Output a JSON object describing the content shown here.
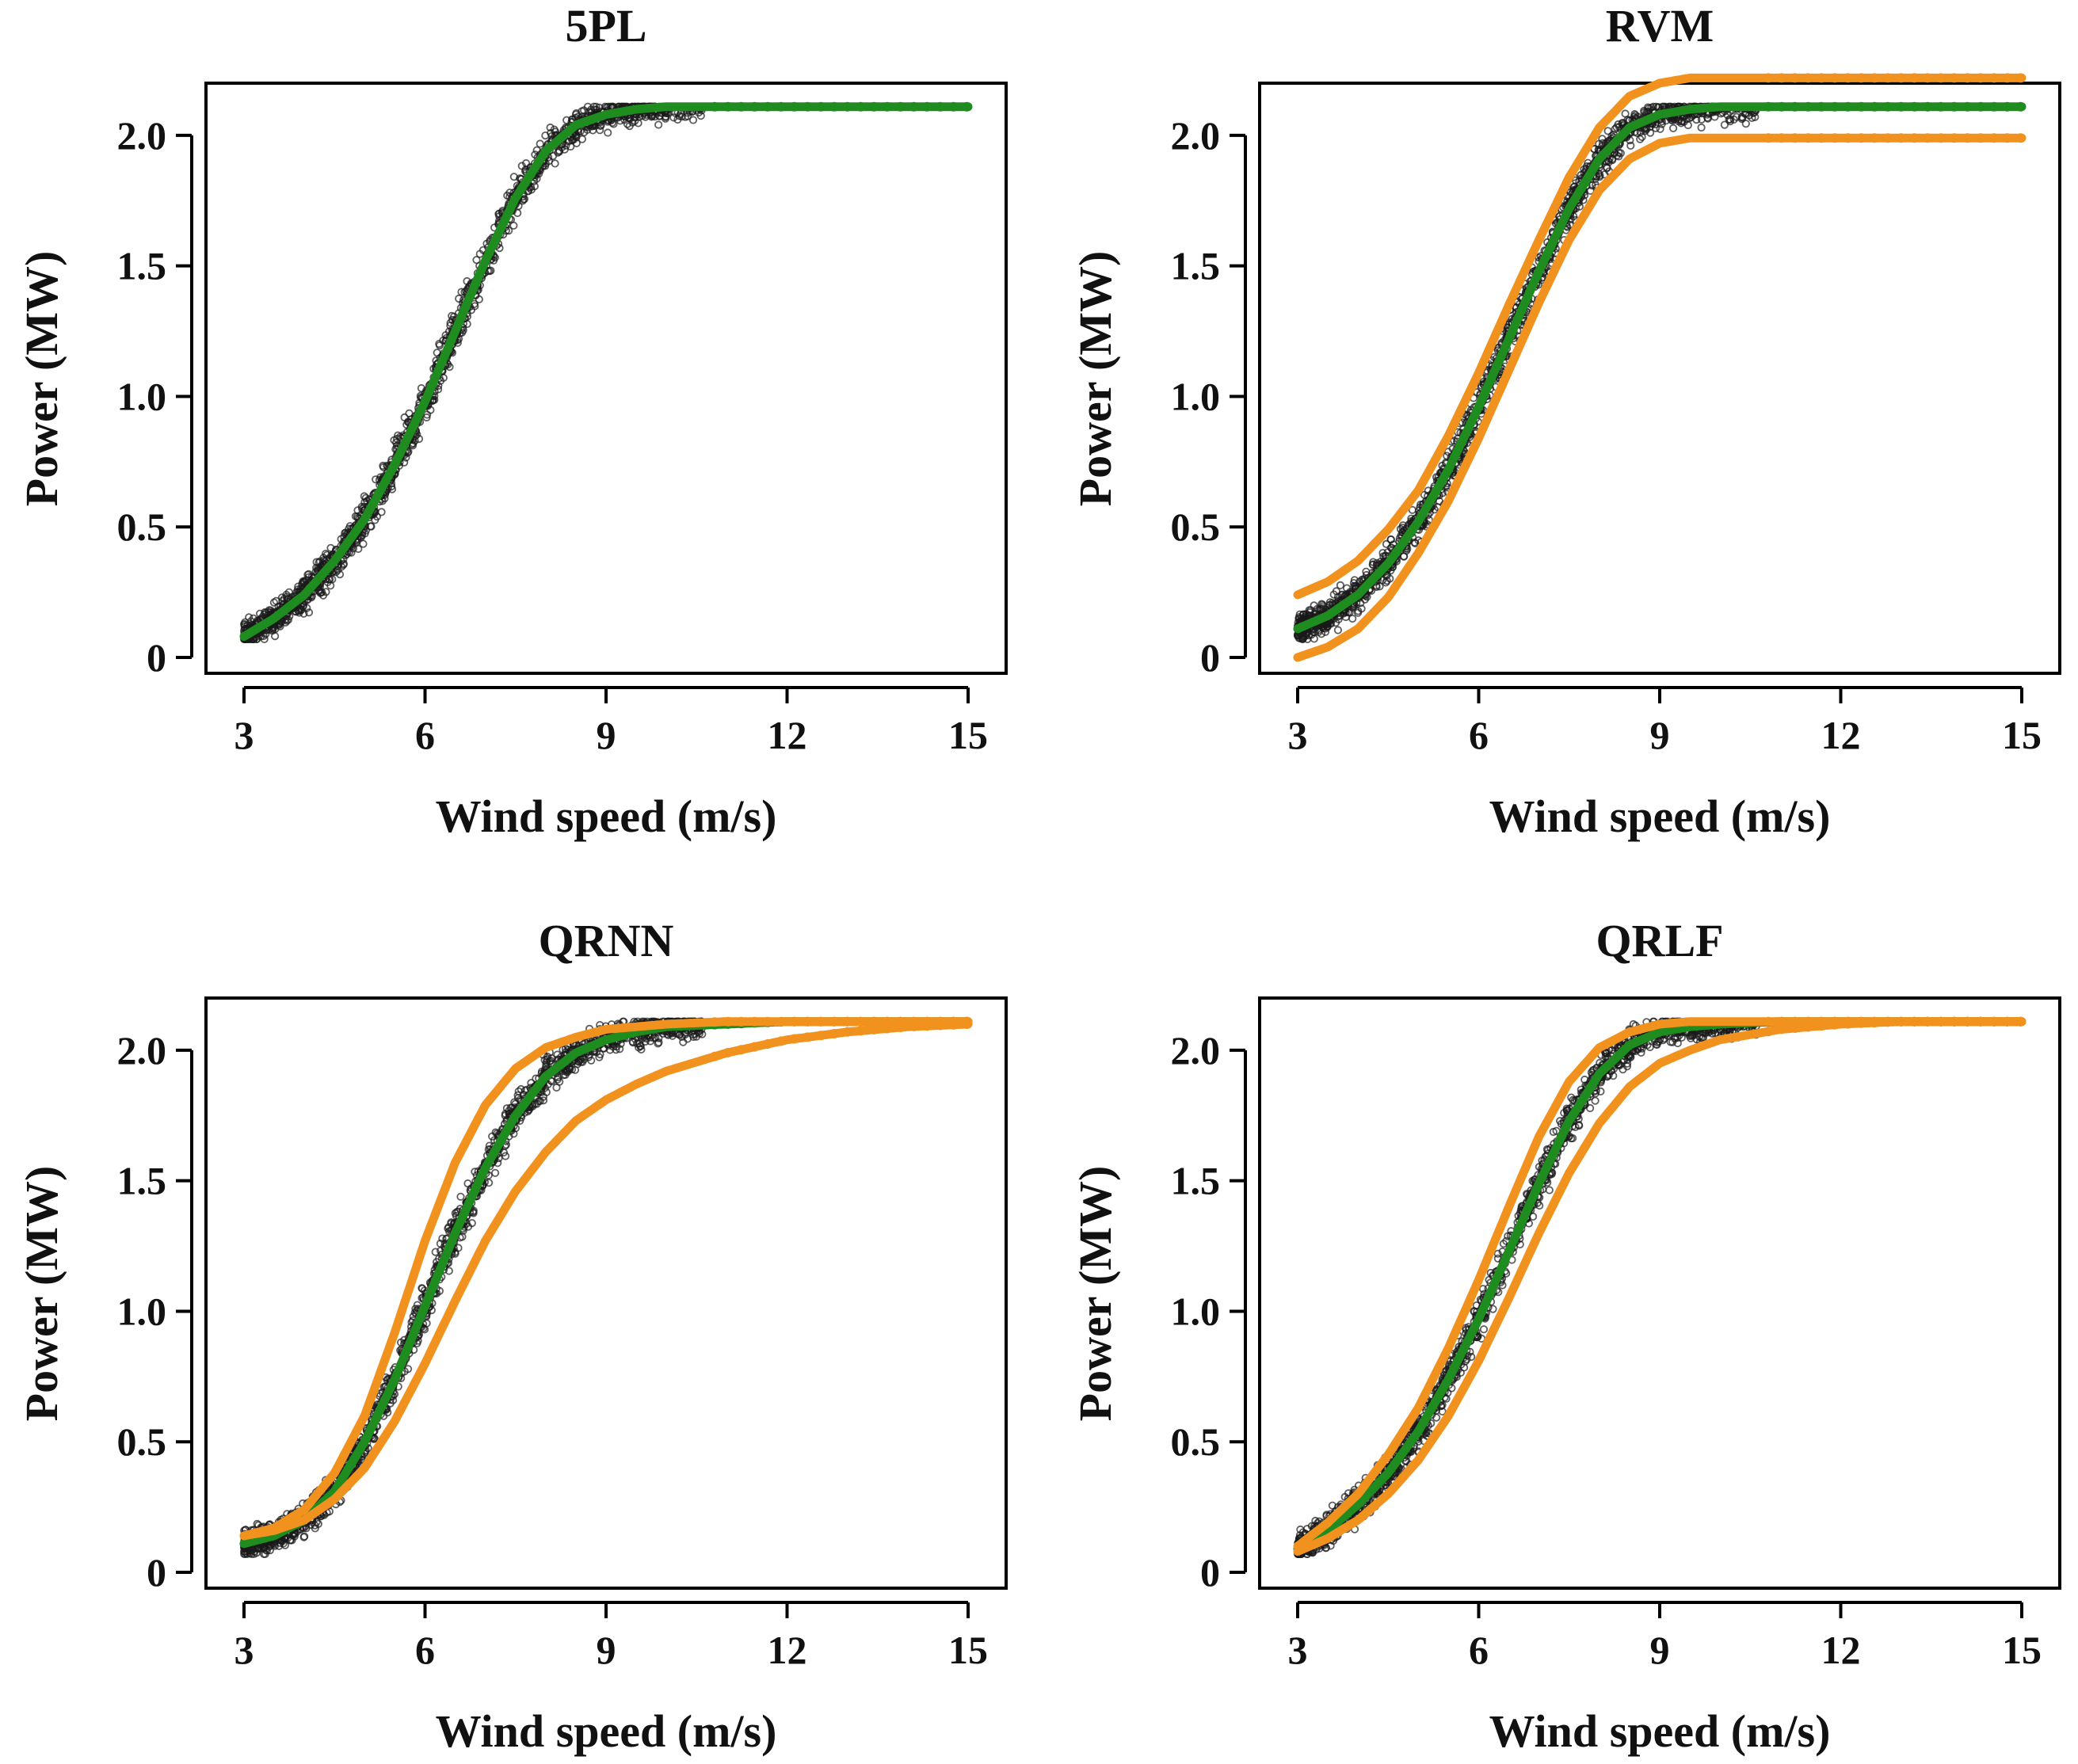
{
  "colors": {
    "scatter": "#1a1a1a",
    "fit": "#1e8c1e",
    "bounds": "#f2921e",
    "axis": "#000000"
  },
  "chart_data": [
    {
      "type": "scatter",
      "title": "5PL",
      "xlabel": "Wind speed (m/s)",
      "ylabel": "Power (MW)",
      "xlim": [
        3,
        15
      ],
      "ylim": [
        0,
        2.2
      ],
      "xticks": [
        3,
        6,
        9,
        12,
        15
      ],
      "yticks": [
        0,
        0.5,
        1.0,
        1.5,
        2.0
      ],
      "ytick_labels": [
        "0",
        "0.5",
        "1.0",
        "1.5",
        "2.0"
      ],
      "grid": false,
      "rated_power": 2.11,
      "fit_curve": {
        "name": "fit",
        "x": [
          3,
          3.5,
          4,
          4.5,
          5,
          5.5,
          6,
          6.5,
          7,
          7.5,
          8,
          8.5,
          9,
          9.5,
          10,
          11,
          12,
          13,
          14,
          15
        ],
        "y": [
          0.08,
          0.15,
          0.24,
          0.37,
          0.53,
          0.74,
          0.98,
          1.25,
          1.52,
          1.76,
          1.94,
          2.04,
          2.08,
          2.1,
          2.11,
          2.11,
          2.11,
          2.11,
          2.11,
          2.11
        ]
      },
      "series": []
    },
    {
      "type": "scatter",
      "title": "RVM",
      "xlabel": "Wind speed (m/s)",
      "ylabel": "Power (MW)",
      "xlim": [
        3,
        15
      ],
      "ylim": [
        0,
        2.2
      ],
      "xticks": [
        3,
        6,
        9,
        12,
        15
      ],
      "yticks": [
        0,
        0.5,
        1.0,
        1.5,
        2.0
      ],
      "ytick_labels": [
        "0",
        "0.5",
        "1.0",
        "1.5",
        "2.0"
      ],
      "grid": false,
      "rated_power": 2.11,
      "fit_curve": {
        "name": "fit",
        "x": [
          3,
          3.5,
          4,
          4.5,
          5,
          5.5,
          6,
          6.5,
          7,
          7.5,
          8,
          8.5,
          9,
          9.5,
          10,
          11,
          12,
          13,
          14,
          15
        ],
        "y": [
          0.11,
          0.16,
          0.24,
          0.36,
          0.52,
          0.72,
          0.96,
          1.22,
          1.48,
          1.72,
          1.91,
          2.03,
          2.08,
          2.1,
          2.11,
          2.11,
          2.11,
          2.11,
          2.11,
          2.11
        ]
      },
      "series": [
        {
          "name": "upper bound",
          "x": [
            3,
            3.5,
            4,
            4.5,
            5,
            5.5,
            6,
            6.5,
            7,
            7.5,
            8,
            8.5,
            9,
            9.5,
            10,
            11,
            12,
            13,
            14,
            15
          ],
          "y": [
            0.24,
            0.29,
            0.37,
            0.49,
            0.64,
            0.85,
            1.09,
            1.35,
            1.6,
            1.84,
            2.03,
            2.15,
            2.2,
            2.22,
            2.22,
            2.22,
            2.22,
            2.22,
            2.22,
            2.22
          ]
        },
        {
          "name": "lower bound",
          "x": [
            3,
            3.5,
            4,
            4.5,
            5,
            5.5,
            6,
            6.5,
            7,
            7.5,
            8,
            8.5,
            9,
            9.5,
            10,
            11,
            12,
            13,
            14,
            15
          ],
          "y": [
            0.0,
            0.04,
            0.11,
            0.23,
            0.4,
            0.6,
            0.84,
            1.1,
            1.36,
            1.6,
            1.79,
            1.91,
            1.97,
            1.99,
            1.99,
            1.99,
            1.99,
            1.99,
            1.99,
            1.99
          ]
        }
      ]
    },
    {
      "type": "scatter",
      "title": "QRNN",
      "xlabel": "Wind speed (m/s)",
      "ylabel": "Power (MW)",
      "xlim": [
        3,
        15
      ],
      "ylim": [
        0,
        2.2
      ],
      "xticks": [
        3,
        6,
        9,
        12,
        15
      ],
      "yticks": [
        0,
        0.5,
        1.0,
        1.5,
        2.0
      ],
      "ytick_labels": [
        "0",
        "0.5",
        "1.0",
        "1.5",
        "2.0"
      ],
      "grid": false,
      "rated_power": 2.11,
      "fit_curve": {
        "name": "fit",
        "x": [
          3,
          3.5,
          4,
          4.5,
          5,
          5.5,
          6,
          6.5,
          7,
          7.5,
          8,
          8.5,
          9,
          9.5,
          10,
          11,
          12,
          13,
          14,
          15
        ],
        "y": [
          0.11,
          0.14,
          0.2,
          0.31,
          0.5,
          0.74,
          1.02,
          1.3,
          1.55,
          1.75,
          1.9,
          1.99,
          2.04,
          2.07,
          2.09,
          2.1,
          2.11,
          2.11,
          2.11,
          2.11
        ]
      },
      "series": [
        {
          "name": "upper bound",
          "x": [
            3,
            3.5,
            4,
            4.5,
            5,
            5.5,
            6,
            6.5,
            7,
            7.5,
            8,
            8.5,
            9,
            9.5,
            10,
            11,
            12,
            13,
            14,
            15
          ],
          "y": [
            0.14,
            0.17,
            0.24,
            0.38,
            0.6,
            0.92,
            1.27,
            1.57,
            1.79,
            1.93,
            2.01,
            2.05,
            2.08,
            2.09,
            2.1,
            2.11,
            2.11,
            2.11,
            2.11,
            2.11
          ]
        },
        {
          "name": "lower bound",
          "x": [
            3,
            3.5,
            4,
            4.5,
            5,
            5.5,
            6,
            6.5,
            7,
            7.5,
            8,
            8.5,
            9,
            9.5,
            10,
            11,
            12,
            13,
            14,
            15
          ],
          "y": [
            0.14,
            0.16,
            0.2,
            0.28,
            0.4,
            0.58,
            0.8,
            1.04,
            1.27,
            1.46,
            1.61,
            1.73,
            1.81,
            1.87,
            1.92,
            1.99,
            2.04,
            2.07,
            2.09,
            2.1
          ]
        }
      ]
    },
    {
      "type": "scatter",
      "title": "QRLF",
      "xlabel": "Wind speed (m/s)",
      "ylabel": "Power (MW)",
      "xlim": [
        3,
        15
      ],
      "ylim": [
        0,
        2.2
      ],
      "xticks": [
        3,
        6,
        9,
        12,
        15
      ],
      "yticks": [
        0,
        0.5,
        1.0,
        1.5,
        2.0
      ],
      "ytick_labels": [
        "0",
        "0.5",
        "1.0",
        "1.5",
        "2.0"
      ],
      "grid": false,
      "rated_power": 2.11,
      "fit_curve": {
        "name": "fit",
        "x": [
          3,
          3.5,
          4,
          4.5,
          5,
          5.5,
          6,
          6.5,
          7,
          7.5,
          8,
          8.5,
          9,
          9.5,
          10,
          11,
          12,
          13,
          14,
          15
        ],
        "y": [
          0.09,
          0.16,
          0.26,
          0.38,
          0.54,
          0.74,
          0.97,
          1.23,
          1.49,
          1.73,
          1.91,
          2.02,
          2.07,
          2.09,
          2.1,
          2.11,
          2.11,
          2.11,
          2.11,
          2.11
        ]
      },
      "series": [
        {
          "name": "upper bound",
          "x": [
            3,
            3.5,
            4,
            4.5,
            5,
            5.5,
            6,
            6.5,
            7,
            7.5,
            8,
            8.5,
            9,
            9.5,
            10,
            11,
            12,
            13,
            14,
            15
          ],
          "y": [
            0.1,
            0.19,
            0.3,
            0.45,
            0.63,
            0.86,
            1.12,
            1.4,
            1.67,
            1.88,
            2.01,
            2.07,
            2.1,
            2.11,
            2.11,
            2.11,
            2.11,
            2.11,
            2.11,
            2.11
          ]
        },
        {
          "name": "lower bound",
          "x": [
            3,
            3.5,
            4,
            4.5,
            5,
            5.5,
            6,
            6.5,
            7,
            7.5,
            8,
            8.5,
            9,
            9.5,
            10,
            11,
            12,
            13,
            14,
            15
          ],
          "y": [
            0.08,
            0.13,
            0.2,
            0.3,
            0.43,
            0.6,
            0.81,
            1.05,
            1.3,
            1.53,
            1.72,
            1.86,
            1.95,
            2.0,
            2.04,
            2.08,
            2.1,
            2.11,
            2.11,
            2.11
          ]
        }
      ]
    }
  ]
}
